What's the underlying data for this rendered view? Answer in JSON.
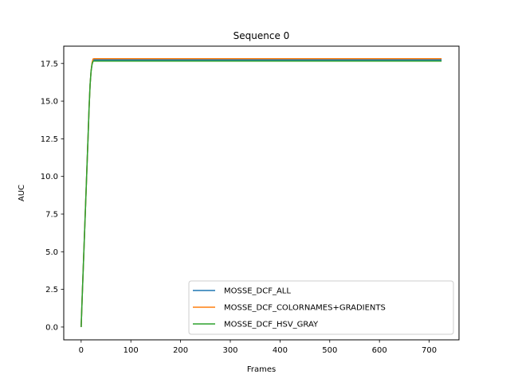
{
  "chart_data": {
    "type": "line",
    "title": "Sequence 0",
    "xlabel": "Frames",
    "ylabel": "AUC",
    "xlim": [
      -35,
      760
    ],
    "ylim": [
      -0.85,
      18.65
    ],
    "xticks": [
      0,
      100,
      200,
      300,
      400,
      500,
      600,
      700
    ],
    "yticks": [
      0.0,
      2.5,
      5.0,
      7.5,
      10.0,
      12.5,
      15.0,
      17.5
    ],
    "xtick_labels": [
      "0",
      "100",
      "200",
      "300",
      "400",
      "500",
      "600",
      "700"
    ],
    "ytick_labels": [
      "0.0",
      "2.5",
      "5.0",
      "7.5",
      "10.0",
      "12.5",
      "15.0",
      "17.5"
    ],
    "grid": false,
    "legend_position": "lower-right",
    "series": [
      {
        "name": "MOSSE_DCF_ALL",
        "color": "#1f77b4",
        "x": [
          0,
          2,
          4,
          6,
          8,
          10,
          12,
          14,
          16,
          18,
          20,
          22,
          24,
          26,
          30,
          50,
          100,
          200,
          300,
          400,
          500,
          600,
          700,
          725
        ],
        "y": [
          0.0,
          1.9,
          3.7,
          5.5,
          7.3,
          9.1,
          10.9,
          12.7,
          14.6,
          16.1,
          17.0,
          17.5,
          17.72,
          17.74,
          17.74,
          17.74,
          17.74,
          17.74,
          17.74,
          17.74,
          17.74,
          17.74,
          17.74,
          17.74
        ]
      },
      {
        "name": "MOSSE_DCF_COLORNAMES+GRADIENTS",
        "color": "#ff7f0e",
        "x": [
          0,
          2,
          4,
          6,
          8,
          10,
          12,
          14,
          16,
          18,
          20,
          22,
          24,
          26,
          30,
          50,
          100,
          200,
          300,
          400,
          500,
          600,
          700,
          725
        ],
        "y": [
          0.0,
          1.9,
          3.7,
          5.5,
          7.3,
          9.1,
          10.9,
          12.7,
          14.6,
          16.1,
          17.0,
          17.55,
          17.8,
          17.82,
          17.82,
          17.82,
          17.82,
          17.82,
          17.82,
          17.82,
          17.82,
          17.82,
          17.82,
          17.82
        ]
      },
      {
        "name": "MOSSE_DCF_HSV_GRAY",
        "color": "#2ca02c",
        "x": [
          0,
          2,
          4,
          6,
          8,
          10,
          12,
          14,
          16,
          18,
          20,
          22,
          24,
          26,
          30,
          50,
          100,
          200,
          300,
          400,
          500,
          600,
          700,
          725
        ],
        "y": [
          0.0,
          1.9,
          3.7,
          5.5,
          7.3,
          9.1,
          10.9,
          12.7,
          14.6,
          16.1,
          17.0,
          17.45,
          17.65,
          17.66,
          17.66,
          17.66,
          17.66,
          17.66,
          17.66,
          17.66,
          17.66,
          17.66,
          17.66,
          17.66
        ]
      }
    ]
  }
}
